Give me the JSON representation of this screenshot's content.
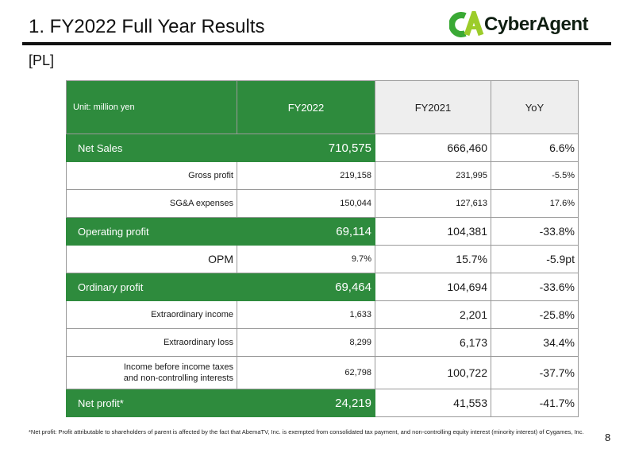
{
  "header": {
    "title": "1. FY2022 Full Year Results"
  },
  "logo": {
    "text": "CyberAgent",
    "mark_text": "CA",
    "mark_color": "#3aa935",
    "mark_accent": "#9ccc2a"
  },
  "section_label": "[PL]",
  "table": {
    "header": {
      "unit_label": "Unit: million yen",
      "col_fy2022": "FY2022",
      "col_fy2021": "FY2021",
      "col_yoy": "YoY"
    },
    "rows": [
      {
        "label": "Net Sales",
        "fy2022": "710,575",
        "fy2021": "666,460",
        "yoy": "6.6%"
      },
      {
        "label": "Gross profit",
        "fy2022": "219,158",
        "fy2021": "231,995",
        "yoy": "-5.5%"
      },
      {
        "label": "SG&A expenses",
        "fy2022": "150,044",
        "fy2021": "127,613",
        "yoy": "17.6%"
      },
      {
        "label": "Operating profit",
        "fy2022": "69,114",
        "fy2021": "104,381",
        "yoy": "-33.8%"
      },
      {
        "label": "OPM",
        "fy2022": "9.7%",
        "fy2021": "15.7%",
        "yoy": "-5.9pt"
      },
      {
        "label": "Ordinary profit",
        "fy2022": "69,464",
        "fy2021": "104,694",
        "yoy": "-33.6%"
      },
      {
        "label": "Extraordinary income",
        "fy2022": "1,633",
        "fy2021": "2,201",
        "yoy": "-25.8%"
      },
      {
        "label": "Extraordinary loss",
        "fy2022": "8,299",
        "fy2021": "6,173",
        "yoy": "34.4%"
      },
      {
        "label_line1": "Income before income taxes",
        "label_line2": "and non-controlling interests",
        "fy2022": "62,798",
        "fy2021": "100,722",
        "yoy": "-37.7%"
      },
      {
        "label": "Net profit*",
        "fy2022": "24,219",
        "fy2021": "41,553",
        "yoy": "-41.7%"
      }
    ]
  },
  "footnote": "*Net profit: Profit attributable to shareholders of parent is affected by the fact that AbemaTV, Inc. is exempted from consolidated tax payment, and non-controlling equity interest (minority interest) of Cygames, Inc.",
  "page_number": "8",
  "colors": {
    "accent_green": "#2e8b3d",
    "header_grey": "#eeeeee"
  }
}
